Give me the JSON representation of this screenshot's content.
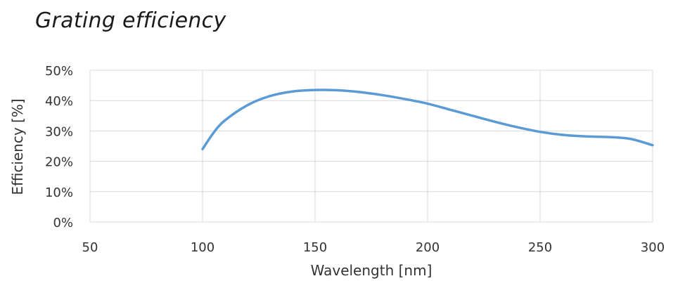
{
  "chart_data": {
    "type": "line",
    "title": "Grating efficiency",
    "xlabel": "Wavelength [nm]",
    "ylabel": "Efficiency [%]",
    "xlim": [
      50,
      300
    ],
    "ylim": [
      0,
      50
    ],
    "x_ticks": [
      50,
      100,
      150,
      200,
      250,
      300
    ],
    "y_ticks": [
      0,
      10,
      20,
      30,
      40,
      50
    ],
    "y_tick_labels": [
      "0%",
      "10%",
      "20%",
      "30%",
      "40%",
      "50%"
    ],
    "grid": true,
    "series": [
      {
        "color": "#5b9bd5",
        "x": [
          100,
          105,
          110,
          120,
          130,
          140,
          150,
          160,
          170,
          180,
          190,
          200,
          210,
          220,
          230,
          240,
          250,
          260,
          270,
          280,
          290,
          300
        ],
        "y": [
          24.0,
          29.5,
          33.5,
          38.5,
          41.5,
          43.0,
          43.5,
          43.4,
          42.8,
          41.8,
          40.5,
          39.0,
          37.0,
          35.0,
          33.0,
          31.2,
          29.7,
          28.7,
          28.2,
          28.0,
          27.4,
          25.3
        ]
      }
    ]
  }
}
